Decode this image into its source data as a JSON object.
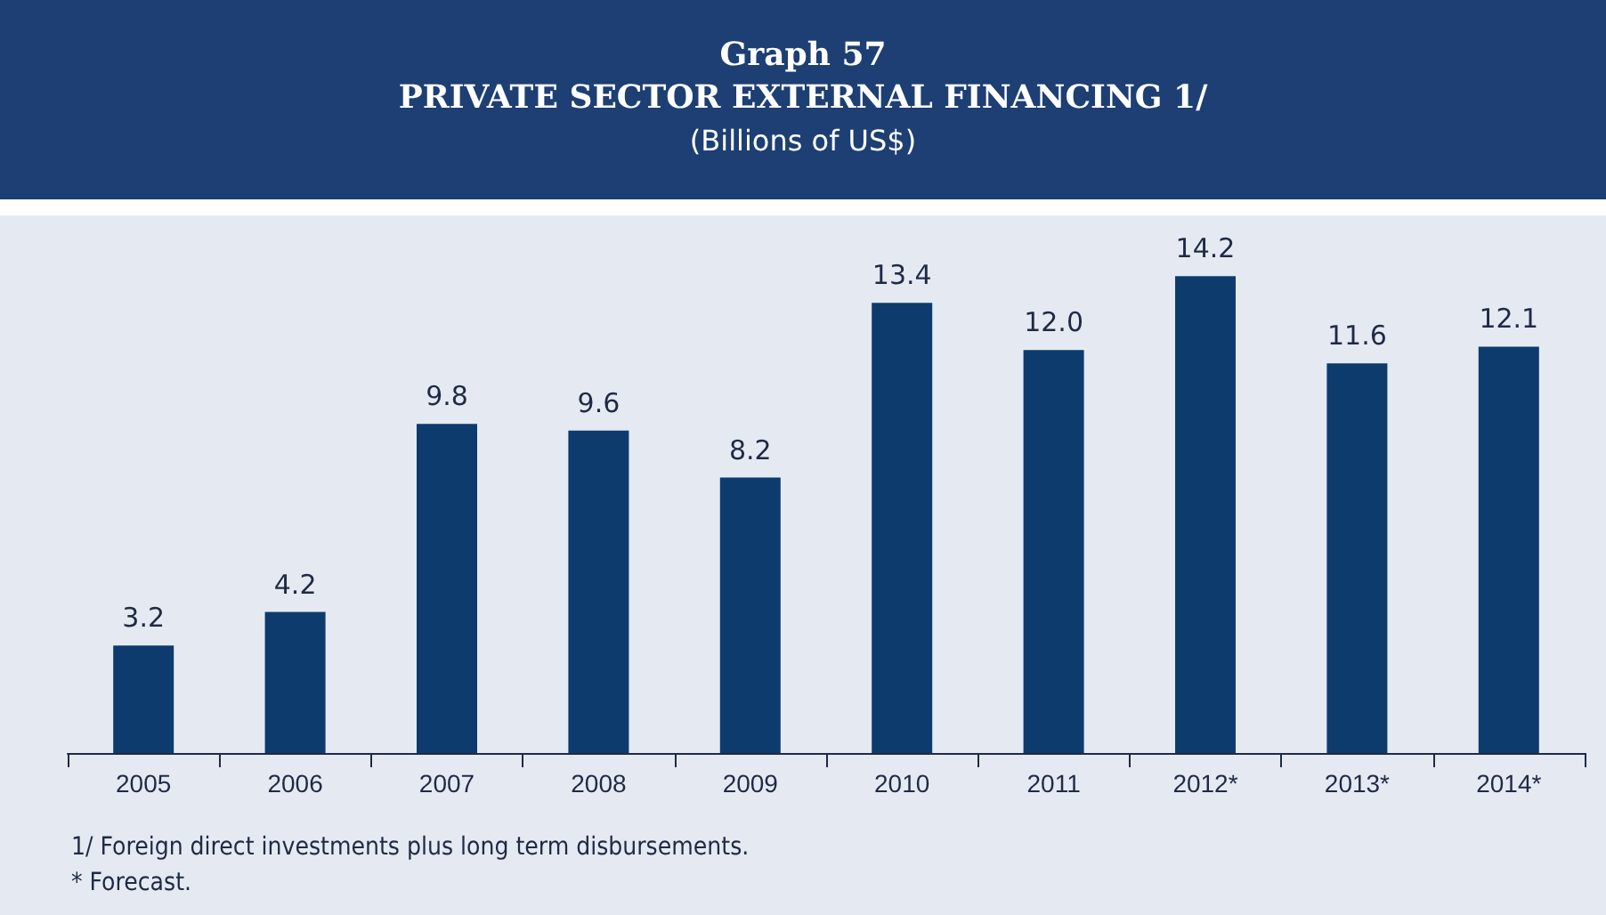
{
  "chart_data": {
    "type": "bar",
    "title": "Graph 57\nPRIVATE SECTOR EXTERNAL FINANCING 1/",
    "subtitle": "(Billions of US$)",
    "categories": [
      "2005",
      "2006",
      "2007",
      "2008",
      "2009",
      "2010",
      "2011",
      "2012*",
      "2013*",
      "2014*"
    ],
    "values": [
      3.2,
      4.2,
      9.8,
      9.6,
      8.2,
      13.4,
      12.0,
      14.2,
      11.6,
      12.1
    ],
    "color": "#0d3b6e",
    "value_labels": [
      "3.2",
      "4.2",
      "9.8",
      "9.6",
      "8.2",
      "13.4",
      "12.0",
      "14.2",
      "11.6",
      "12.1"
    ],
    "annotations": [
      "1/ Foreign direct investments plus long term disbursements.",
      "* Forecast."
    ]
  }
}
